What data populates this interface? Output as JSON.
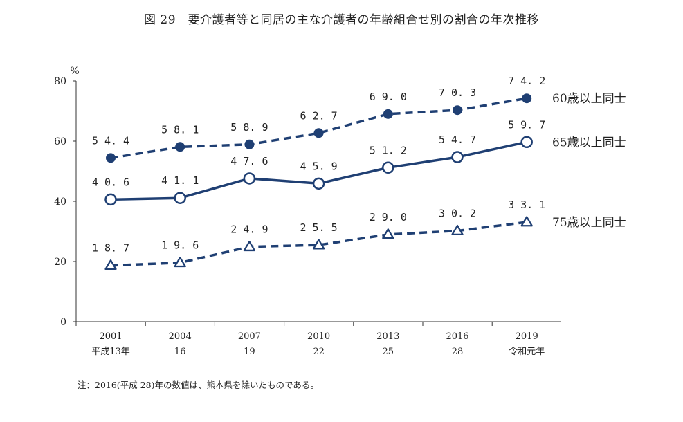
{
  "title": "図 29　要介護者等と同居の主な介護者の年齢組合せ別の割合の年次推移",
  "note": "注：2016(平成 28)年の数値は、熊本県を除いたものである。",
  "colors": {
    "series": "#1f3f73",
    "axis": "#333333"
  },
  "chart_data": {
    "type": "line",
    "ylabel": "%",
    "ylim": [
      0,
      80
    ],
    "yticks": [
      0,
      20,
      40,
      60,
      80
    ],
    "categories": [
      {
        "top": "2001",
        "bottom": "平成13年"
      },
      {
        "top": "2004",
        "bottom": "16"
      },
      {
        "top": "2007",
        "bottom": "19"
      },
      {
        "top": "2010",
        "bottom": "22"
      },
      {
        "top": "2013",
        "bottom": "25"
      },
      {
        "top": "2016",
        "bottom": "28"
      },
      {
        "top": "2019",
        "bottom": "令和元年"
      }
    ],
    "grid": false,
    "series": [
      {
        "name": "60歳以上同士",
        "values": [
          54.4,
          58.1,
          58.9,
          62.7,
          69.0,
          70.3,
          74.2
        ],
        "labels": [
          "54.4",
          "58.1",
          "58.9",
          "62.7",
          "69.0",
          "70.3",
          "74.2"
        ],
        "line": "dashed",
        "marker": "filled-circle"
      },
      {
        "name": "65歳以上同士",
        "values": [
          40.6,
          41.1,
          47.6,
          45.9,
          51.2,
          54.7,
          59.7
        ],
        "labels": [
          "40.6",
          "41.1",
          "47.6",
          "45.9",
          "51.2",
          "54.7",
          "59.7"
        ],
        "line": "solid",
        "marker": "open-circle"
      },
      {
        "name": "75歳以上同士",
        "values": [
          18.7,
          19.6,
          24.9,
          25.5,
          29.0,
          30.2,
          33.1
        ],
        "labels": [
          "18.7",
          "19.6",
          "24.9",
          "25.5",
          "29.0",
          "30.2",
          "33.1"
        ],
        "line": "dashed",
        "marker": "open-triangle"
      }
    ]
  }
}
